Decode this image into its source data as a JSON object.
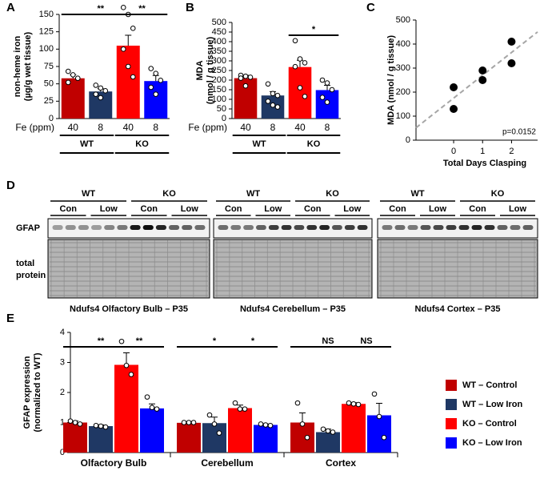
{
  "chart_data": [
    {
      "panel": "A",
      "type": "bar",
      "ylabel": [
        "non-heme iron",
        "(µg/g wet tissue)"
      ],
      "category_label": "Fe (ppm)",
      "categories": [
        "40",
        "8",
        "40",
        "8"
      ],
      "groups": [
        "WT",
        "KO"
      ],
      "values": [
        58,
        39,
        105,
        54
      ],
      "errors": [
        5,
        4,
        15,
        8
      ],
      "points": [
        [
          68,
          63,
          58,
          52
        ],
        [
          48,
          44,
          40,
          35,
          30
        ],
        [
          160,
          150,
          130,
          100,
          75,
          60
        ],
        [
          72,
          65,
          55,
          45,
          35
        ]
      ],
      "colors": [
        "#c00000",
        "#1f3864",
        "#ff0000",
        "#0000ff"
      ],
      "ylim": [
        0,
        150
      ],
      "yticks": [
        0,
        25,
        50,
        75,
        100,
        125,
        150
      ],
      "significance": [
        "**",
        "**"
      ]
    },
    {
      "panel": "B",
      "type": "bar",
      "ylabel": [
        "MDA",
        "(nmol / g tissue)"
      ],
      "category_label": "Fe (ppm)",
      "categories": [
        "40",
        "8",
        "40",
        "8"
      ],
      "groups": [
        "WT",
        "KO"
      ],
      "values": [
        210,
        120,
        268,
        148
      ],
      "errors": [
        15,
        20,
        35,
        25
      ],
      "points": [
        [
          225,
          220,
          215,
          210,
          170
        ],
        [
          180,
          130,
          120,
          90,
          70,
          60
        ],
        [
          405,
          310,
          290,
          270,
          160,
          115
        ],
        [
          200,
          185,
          150,
          110,
          85
        ]
      ],
      "colors": [
        "#c00000",
        "#1f3864",
        "#ff0000",
        "#0000ff"
      ],
      "ylim": [
        0,
        500
      ],
      "yticks": [
        0,
        50,
        100,
        150,
        200,
        250,
        300,
        350,
        400,
        450,
        500
      ],
      "significance": [
        "*"
      ]
    },
    {
      "panel": "C",
      "type": "scatter",
      "xlabel": "Total Days Clasping",
      "ylabel": "MDA (nmol / g tissue)",
      "x": [
        0,
        0,
        1,
        1,
        2,
        2
      ],
      "values": [
        220,
        130,
        290,
        250,
        410,
        320
      ],
      "color": "#000000",
      "xlim": [
        -1.3,
        2.9
      ],
      "xticks": [
        0,
        1,
        2
      ],
      "ylim": [
        0,
        500
      ],
      "yticks": [
        0,
        100,
        200,
        300,
        400,
        500
      ],
      "trendline": true,
      "annotation": "p=0.0152"
    },
    {
      "panel": "E",
      "type": "grouped_bar",
      "ylabel": [
        "GFAP expression",
        "(normalized to WT)"
      ],
      "categories": [
        "Olfactory Bulb",
        "Cerebellum",
        "Cortex"
      ],
      "series": [
        {
          "name": "WT – Control",
          "color": "#c00000",
          "values": [
            1.0,
            0.99,
            1.0
          ],
          "errors": [
            0.05,
            0.03,
            0.32
          ],
          "points": [
            [
              1.05,
              1.0,
              0.95
            ],
            [
              1.0,
              1.0,
              1.0
            ],
            [
              1.65,
              0.95,
              0.5
            ]
          ]
        },
        {
          "name": "WT – Low Iron",
          "color": "#1f3864",
          "values": [
            0.88,
            0.98,
            0.68
          ],
          "errors": [
            0.04,
            0.2,
            0.1
          ],
          "points": [
            [
              0.9,
              0.88,
              0.85
            ],
            [
              1.25,
              0.95,
              0.65
            ],
            [
              0.78,
              0.72,
              0.68
            ]
          ]
        },
        {
          "name": "KO – Control",
          "color": "#ff0000",
          "values": [
            2.92,
            1.48,
            1.62
          ],
          "errors": [
            0.4,
            0.1,
            0.04
          ],
          "points": [
            [
              3.7,
              2.9,
              2.6
            ],
            [
              1.65,
              1.45,
              1.45
            ],
            [
              1.65,
              1.62,
              1.6
            ]
          ]
        },
        {
          "name": "KO – Low Iron",
          "color": "#0000ff",
          "values": [
            1.47,
            0.92,
            1.24
          ],
          "errors": [
            0.15,
            0.03,
            0.4
          ],
          "points": [
            [
              1.85,
              1.5,
              1.45
            ],
            [
              0.95,
              0.92,
              0.9
            ],
            [
              1.95,
              1.2,
              0.5
            ]
          ]
        }
      ],
      "ylim": [
        0,
        4
      ],
      "yticks": [
        0,
        1,
        2,
        3,
        4
      ],
      "significance": [
        [
          "**",
          "**"
        ],
        [
          "*",
          "*"
        ],
        [
          "NS",
          "NS"
        ]
      ]
    }
  ],
  "blot": {
    "panel": "D",
    "gfap_label": "GFAP",
    "total_protein_label": [
      "total",
      "protein"
    ],
    "panels": [
      {
        "genotypes": [
          "WT",
          "KO"
        ],
        "conditions": [
          "Con",
          "Low",
          "Con",
          "Low"
        ],
        "caption": "Ndufs4 Olfactory Bulb – P35"
      },
      {
        "genotypes": [
          "WT",
          "KO"
        ],
        "conditions": [
          "Con",
          "Low",
          "Con",
          "Low"
        ],
        "caption": "Ndufs4 Cerebellum – P35"
      },
      {
        "genotypes": [
          "WT",
          "KO"
        ],
        "conditions": [
          "Con",
          "Low",
          "Con",
          "Low"
        ],
        "caption": "Ndufs4 Cortex – P35"
      }
    ]
  }
}
